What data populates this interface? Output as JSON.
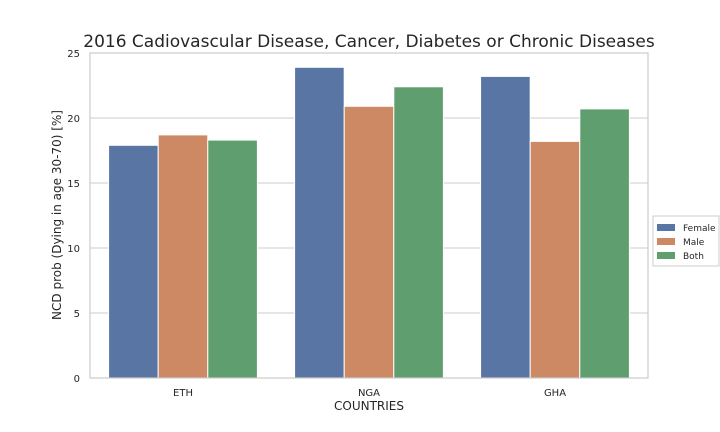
{
  "chart_data": {
    "type": "bar",
    "title": "2016 Cadiovascular Disease, Cancer, Diabetes or Chronic Diseases",
    "xlabel": "COUNTRIES",
    "ylabel": "NCD prob (Dying in age 30-70) [%]",
    "categories": [
      "ETH",
      "NGA",
      "GHA"
    ],
    "series": [
      {
        "name": "Female",
        "color": "#5875a4",
        "values": [
          17.9,
          23.9,
          23.2
        ]
      },
      {
        "name": "Male",
        "color": "#cc8963",
        "values": [
          18.7,
          20.9,
          18.2
        ]
      },
      {
        "name": "Both",
        "color": "#5f9e6e",
        "values": [
          18.3,
          22.4,
          20.7
        ]
      }
    ],
    "ylim": [
      0,
      25
    ],
    "yticks": [
      0,
      5,
      10,
      15,
      20,
      25
    ],
    "grid": "horizontal",
    "legend_position": "right"
  }
}
